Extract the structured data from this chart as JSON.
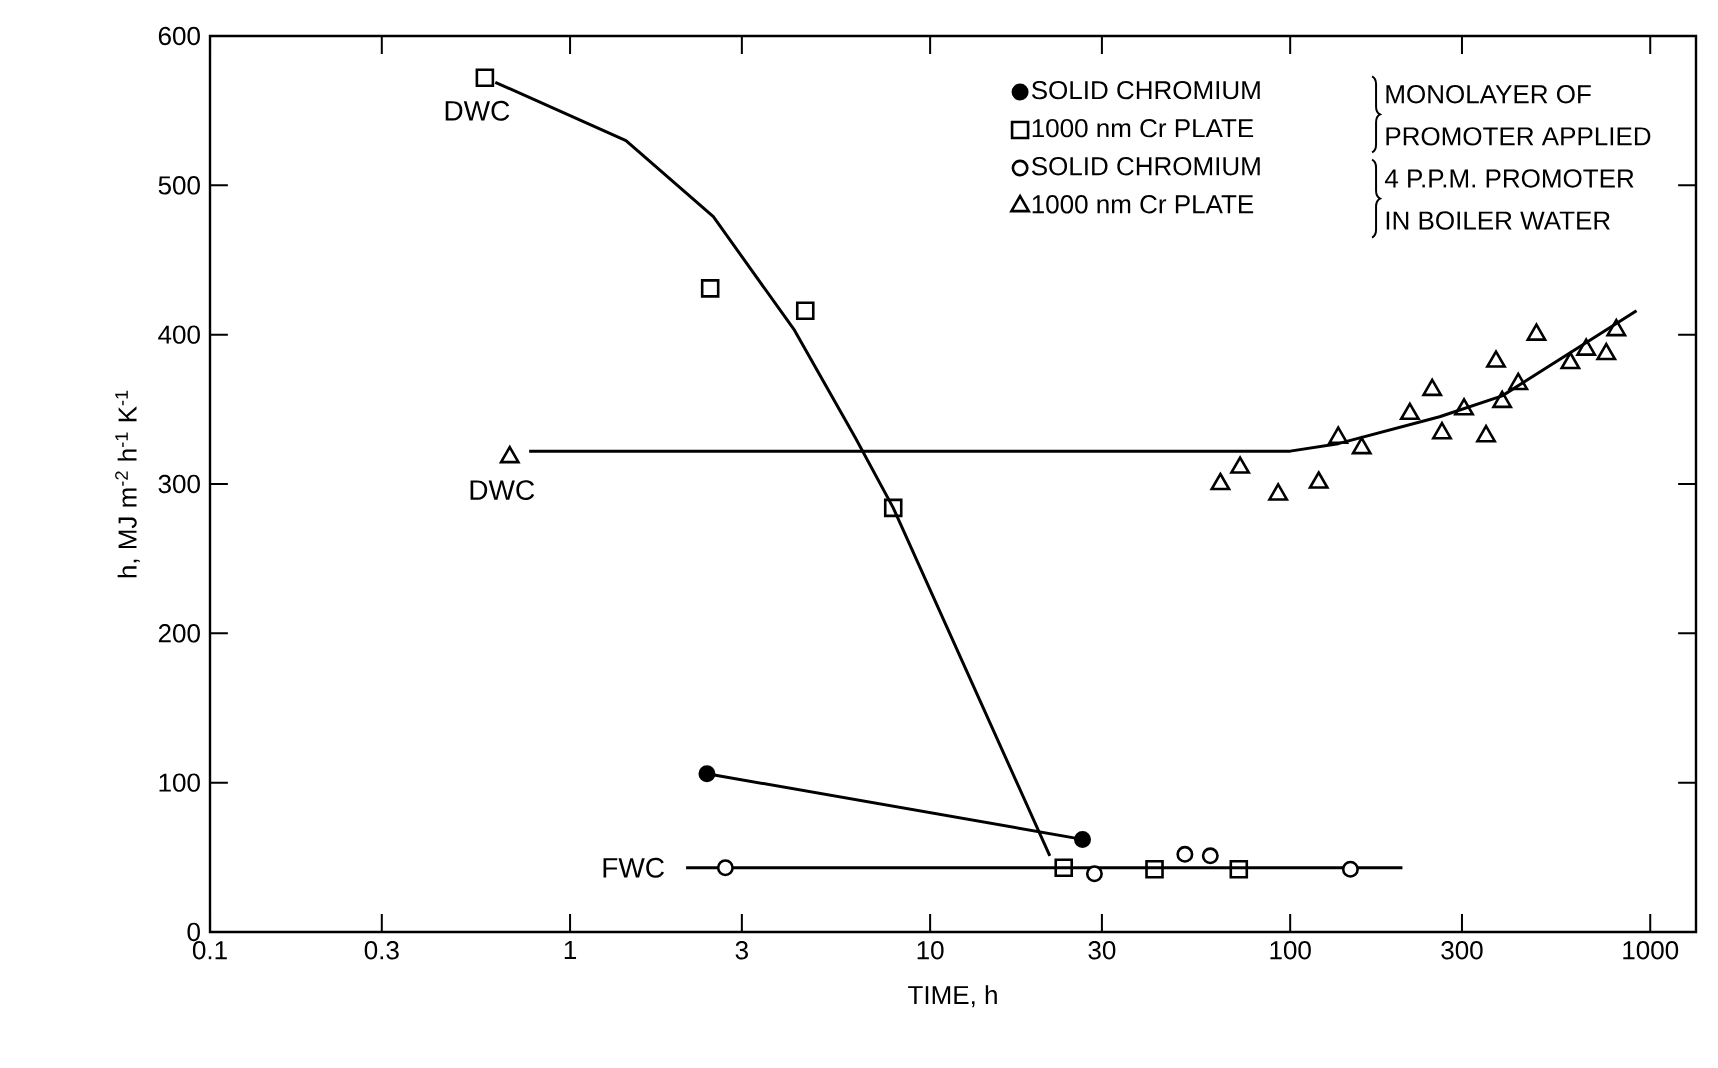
{
  "chart_data": {
    "type": "scatter",
    "xlabel": "TIME, h",
    "ylabel": "h, MJ m$^{-2}$ h$^{-1}$ K$^{-1}$",
    "log": "x",
    "xlim": [
      0.1,
      1340
    ],
    "ylim": [
      0,
      600
    ],
    "xticks": [
      0.1,
      0.3,
      1,
      3,
      10,
      30,
      100,
      300,
      1000
    ],
    "yticks": [
      0,
      100,
      200,
      300,
      400,
      500,
      600
    ],
    "grid": false,
    "legend": "top right",
    "series": [
      {
        "name": "SOLID CHROMIUM",
        "type": "line",
        "marker": "circle",
        "color": "#000000",
        "x": [
          2.4,
          26.5
        ],
        "values": [
          106,
          62
        ]
      },
      {
        "name": "1000 nm Cr PLATE",
        "marker": "square",
        "color": "#000000",
        "x": [
          0.58,
          2.45,
          4.5,
          7.9,
          23.5,
          42,
          72
        ],
        "values": [
          572,
          431,
          416,
          284,
          43,
          42,
          42
        ]
      },
      {
        "name": "SOLID CHROMIUM",
        "marker": "circle",
        "color": "#000000",
        "x": [
          2.7,
          28.6,
          51,
          60,
          147
        ],
        "values": [
          43,
          39,
          52,
          51,
          42
        ]
      },
      {
        "name": "1000 nm Cr PLATE",
        "marker": "triangle",
        "color": "#000000",
        "x": [
          0.68,
          64,
          72.6,
          92.6,
          120,
          136,
          158,
          215,
          248,
          264,
          304,
          350,
          388,
          430,
          373,
          483,
          600,
          664,
          755,
          805
        ],
        "values": [
          318,
          300,
          311,
          293,
          301,
          331,
          324,
          347,
          363,
          334,
          350,
          332,
          355,
          367,
          382,
          400,
          381,
          390,
          387,
          403
        ]
      },
      {
        "type": "line",
        "marker": "none",
        "color": "#000000",
        "x": [
          0.62,
          1.43,
          2.5,
          4.2,
          6.2,
          7.9,
          21.5
        ],
        "values": [
          569,
          530,
          479,
          403,
          331,
          284,
          51
        ]
      },
      {
        "type": "line",
        "marker": "none",
        "color": "#000000",
        "x": [
          0.77,
          100,
          136,
          260,
          388,
          916
        ],
        "values": [
          322,
          322,
          327,
          345,
          359,
          416
        ]
      },
      {
        "type": "line",
        "marker": "none",
        "color": "#000000",
        "x": [
          2.1,
          205
        ],
        "values": [
          43,
          43
        ]
      }
    ],
    "annotations": [
      {
        "text": "DWC",
        "x": 0.58,
        "y": 572
      },
      {
        "text": "DWC",
        "x": 0.68,
        "y": 318
      },
      {
        "text": "FWC",
        "x": 2.1,
        "y": 43
      },
      "MONOLAYER OF",
      "PROMOTER APPLIED",
      "4 P.P.M. PROMOTER",
      "IN BOILER WATER"
    ]
  }
}
